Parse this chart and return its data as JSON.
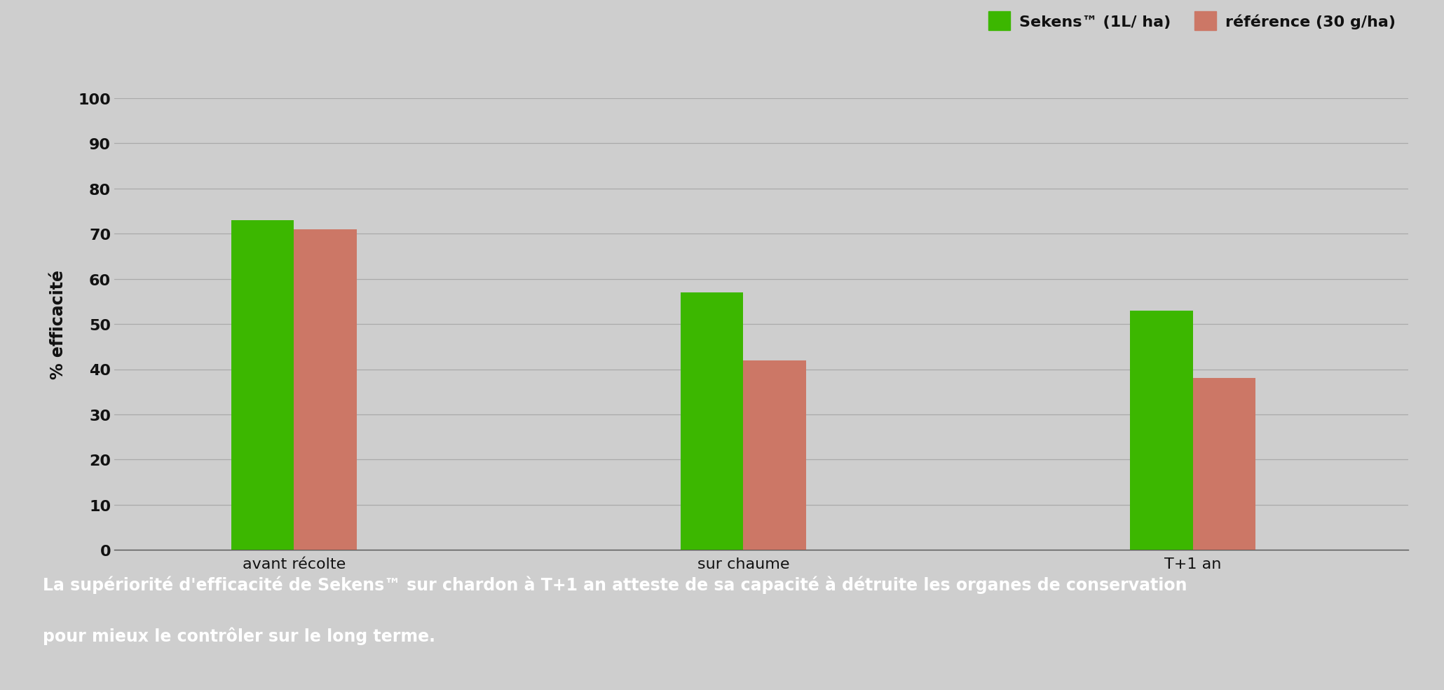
{
  "categories": [
    "avant récolte",
    "sur chaume",
    "T+1 an"
  ],
  "sekens_values": [
    73,
    57,
    53
  ],
  "reference_values": [
    71,
    42,
    38
  ],
  "sekens_color": "#3CB700",
  "reference_color": "#CC7766",
  "background_color": "#CECECE",
  "plot_bg_color": "#CECECE",
  "footer_bg_color": "#2D3F5E",
  "footer_text_color": "#FFFFFF",
  "ylabel": "% efficacité",
  "ylim": [
    0,
    100
  ],
  "yticks": [
    0,
    10,
    20,
    30,
    40,
    50,
    60,
    70,
    80,
    90,
    100
  ],
  "legend_label_1": "Sekens™ (1L/ ha)",
  "legend_label_2": "référence (30 g/ha)",
  "footer_line1": "La supériorité d'efficacité de Sekens™ sur chardon à T+1 an atteste de sa capacité à détruite les organes de conservation",
  "footer_line2": "pour mieux le contrôler sur le long terme.",
  "bar_width": 0.35,
  "axis_label_fontsize": 17,
  "tick_label_fontsize": 16,
  "legend_fontsize": 16,
  "footer_fontsize": 17,
  "grid_color": "#AAAAAA",
  "text_color": "#111111"
}
